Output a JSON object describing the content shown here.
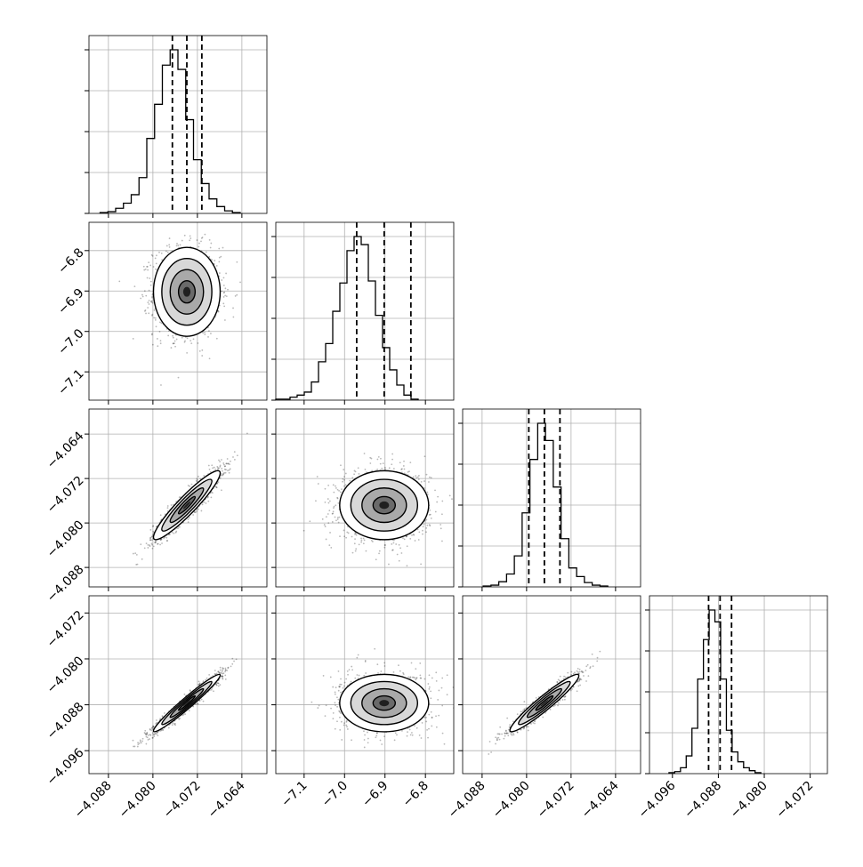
{
  "chart_data": {
    "type": "corner",
    "n_params": 4,
    "grid": true,
    "params": [
      {
        "range": [
          -4.0915,
          -4.0595
        ],
        "ticks": [
          -4.088,
          -4.08,
          -4.072,
          -4.064
        ],
        "tick_labels": [
          "−4.088",
          "−4.080",
          "−4.072",
          "−4.064"
        ],
        "quantiles": [
          -4.0765,
          -4.0739,
          -4.0712
        ],
        "hist_x0": -4.0895,
        "hist_dx": 0.0014,
        "hist_counts": [
          1,
          2,
          6,
          12,
          22,
          42,
          88,
          128,
          174,
          192,
          169,
          110,
          63,
          35,
          17,
          8,
          3,
          1
        ]
      },
      {
        "range": [
          -7.17,
          -6.73
        ],
        "ticks": [
          -7.1,
          -7.0,
          -6.9,
          -6.8
        ],
        "tick_labels": [
          "−7.1",
          "−7.0",
          "−6.9",
          "−6.8"
        ],
        "quantiles": [
          -6.97,
          -6.902,
          -6.836
        ],
        "hist_x0": -7.17,
        "hist_dx": 0.0176,
        "hist_counts": [
          1,
          1,
          3,
          5,
          8,
          18,
          38,
          56,
          88,
          116,
          148,
          162,
          154,
          118,
          84,
          52,
          30,
          15,
          5,
          1
        ]
      },
      {
        "range": [
          -4.0915,
          -4.0595
        ],
        "ticks": [
          -4.088,
          -4.08,
          -4.072,
          -4.064
        ],
        "tick_labels": [
          "−4.088",
          "−4.080",
          "−4.072",
          "−4.064"
        ],
        "quantiles": [
          -4.0796,
          -4.0768,
          -4.074
        ],
        "hist_x0": -4.0878,
        "hist_dx": 0.0014,
        "hist_counts": [
          1,
          2,
          6,
          15,
          36,
          86,
          148,
          190,
          170,
          116,
          56,
          22,
          12,
          5,
          2,
          1
        ]
      },
      {
        "range": [
          -4.1,
          -4.069
        ],
        "ticks": [
          -4.096,
          -4.088,
          -4.08,
          -4.072
        ],
        "tick_labels": [
          "−4.096",
          "−4.088",
          "−4.080",
          "−4.072"
        ],
        "quantiles": [
          -4.0897,
          -4.0877,
          -4.0857
        ],
        "hist_x0": -4.0966,
        "hist_dx": 0.001,
        "hist_counts": [
          1,
          2,
          6,
          18,
          46,
          96,
          136,
          166,
          154,
          96,
          44,
          22,
          12,
          6,
          3,
          1
        ]
      }
    ],
    "pairs": [
      {
        "row": 1,
        "col": 0,
        "mean": [
          -4.0739,
          -6.902
        ],
        "sd": [
          0.003,
          0.055
        ],
        "rho": 0.0,
        "n_samples": 1400
      },
      {
        "row": 2,
        "col": 0,
        "mean": [
          -4.0739,
          -4.0768
        ],
        "sd": [
          0.003,
          0.0031
        ],
        "rho": 0.93,
        "n_samples": 1400
      },
      {
        "row": 2,
        "col": 1,
        "mean": [
          -6.902,
          -4.0768
        ],
        "sd": [
          0.055,
          0.0031
        ],
        "rho": 0.0,
        "n_samples": 1400
      },
      {
        "row": 3,
        "col": 0,
        "mean": [
          -4.0739,
          -4.0877
        ],
        "sd": [
          0.003,
          0.0025
        ],
        "rho": 0.97,
        "n_samples": 1400
      },
      {
        "row": 3,
        "col": 1,
        "mean": [
          -6.902,
          -4.0877
        ],
        "sd": [
          0.055,
          0.0025
        ],
        "rho": 0.0,
        "n_samples": 1400
      },
      {
        "row": 3,
        "col": 2,
        "mean": [
          -4.0768,
          -4.0877
        ],
        "sd": [
          0.0031,
          0.0025
        ],
        "rho": 0.95,
        "n_samples": 1400
      }
    ]
  }
}
